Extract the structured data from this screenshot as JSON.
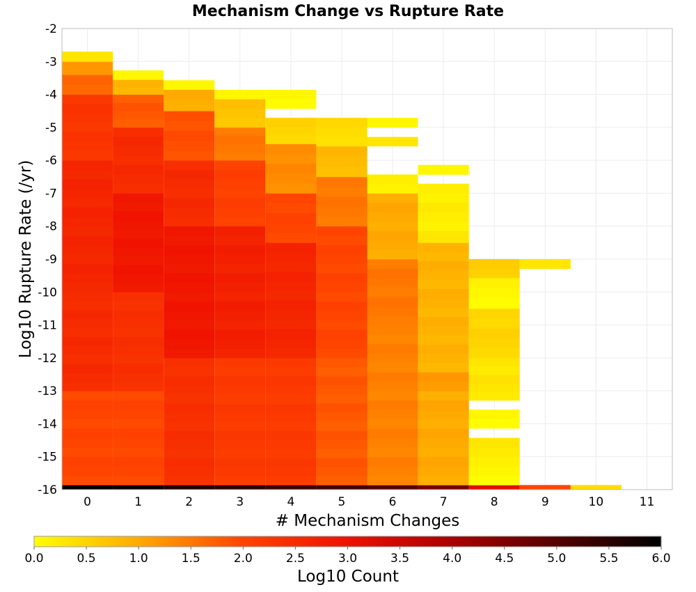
{
  "chart_data": {
    "type": "heatmap",
    "title": "Mechanism Change vs Rupture Rate",
    "xlabel": "# Mechanism Changes",
    "ylabel": "Log10 Rupture Rate (/yr)",
    "x_ticks": [
      "0",
      "1",
      "2",
      "3",
      "4",
      "5",
      "6",
      "7",
      "8",
      "9",
      "10",
      "11"
    ],
    "y_ticks": [
      "-2",
      "-3",
      "-4",
      "-5",
      "-6",
      "-7",
      "-8",
      "-9",
      "-10",
      "-11",
      "-12",
      "-13",
      "-14",
      "-15",
      "-16"
    ],
    "xlim": [
      -0.5,
      11.5
    ],
    "ylim": [
      -16,
      -2
    ],
    "bin_height": 0.2857,
    "colorscale": {
      "label": "Log10 Count",
      "range": [
        0,
        6
      ],
      "ticks": [
        "0.0",
        "0.5",
        "1.0",
        "1.5",
        "2.0",
        "2.5",
        "3.0",
        "3.5",
        "4.0",
        "4.5",
        "5.0",
        "5.5",
        "6.0"
      ],
      "stops": [
        "#ffff00",
        "#ffaa00",
        "#ff4400",
        "#ee1100",
        "#aa0000",
        "#550000",
        "#000000"
      ]
    },
    "columns": [
      {
        "x": 0,
        "bins": [
          {
            "from": -16.0,
            "to": -15.86,
            "value": 6.0
          },
          {
            "from": -15.86,
            "to": -13.0,
            "value": 2.0
          },
          {
            "from": -13.0,
            "to": -10.0,
            "value": 2.5
          },
          {
            "from": -10.0,
            "to": -6.0,
            "value": 2.6
          },
          {
            "from": -6.0,
            "to": -4.0,
            "value": 2.3
          },
          {
            "from": -4.0,
            "to": -3.4,
            "value": 1.7
          },
          {
            "from": -3.4,
            "to": -3.0,
            "value": 1.2
          },
          {
            "from": -3.0,
            "to": -2.7,
            "value": 0.3
          }
        ]
      },
      {
        "x": 1,
        "bins": [
          {
            "from": -16.0,
            "to": -15.86,
            "value": 5.9
          },
          {
            "from": -15.86,
            "to": -13.0,
            "value": 2.0
          },
          {
            "from": -13.0,
            "to": -10.0,
            "value": 2.4
          },
          {
            "from": -10.0,
            "to": -7.0,
            "value": 2.9
          },
          {
            "from": -7.0,
            "to": -5.0,
            "value": 2.5
          },
          {
            "from": -5.0,
            "to": -4.0,
            "value": 1.8
          },
          {
            "from": -4.0,
            "to": -3.55,
            "value": 0.9
          },
          {
            "from": -3.55,
            "to": -3.27,
            "value": 0.1
          }
        ]
      },
      {
        "x": 2,
        "bins": [
          {
            "from": -16.0,
            "to": -15.86,
            "value": 5.6
          },
          {
            "from": -15.86,
            "to": -12.0,
            "value": 2.4
          },
          {
            "from": -12.0,
            "to": -8.0,
            "value": 2.9
          },
          {
            "from": -8.0,
            "to": -6.0,
            "value": 2.5
          },
          {
            "from": -6.0,
            "to": -4.5,
            "value": 1.9
          },
          {
            "from": -4.5,
            "to": -3.85,
            "value": 1.0
          },
          {
            "from": -3.85,
            "to": -3.57,
            "value": 0.1
          }
        ]
      },
      {
        "x": 3,
        "bins": [
          {
            "from": -16.0,
            "to": -15.86,
            "value": 5.5
          },
          {
            "from": -15.86,
            "to": -12.0,
            "value": 2.2
          },
          {
            "from": -12.0,
            "to": -8.0,
            "value": 2.7
          },
          {
            "from": -8.0,
            "to": -6.0,
            "value": 2.1
          },
          {
            "from": -6.0,
            "to": -5.0,
            "value": 1.5
          },
          {
            "from": -5.0,
            "to": -4.14,
            "value": 0.7
          },
          {
            "from": -4.14,
            "to": -3.86,
            "value": 0.1
          }
        ]
      },
      {
        "x": 4,
        "bins": [
          {
            "from": -16.0,
            "to": -15.86,
            "value": 5.3
          },
          {
            "from": -15.86,
            "to": -12.0,
            "value": 2.2
          },
          {
            "from": -12.0,
            "to": -8.5,
            "value": 2.6
          },
          {
            "from": -8.5,
            "to": -7.0,
            "value": 2.0
          },
          {
            "from": -7.0,
            "to": -5.5,
            "value": 1.3
          },
          {
            "from": -5.5,
            "to": -4.71,
            "value": 0.5
          },
          {
            "from": -4.43,
            "to": -3.86,
            "value": 0.1
          }
        ]
      },
      {
        "x": 5,
        "bins": [
          {
            "from": -16.0,
            "to": -15.86,
            "value": 5.2
          },
          {
            "from": -15.86,
            "to": -12.0,
            "value": 1.8
          },
          {
            "from": -12.0,
            "to": -8.0,
            "value": 2.0
          },
          {
            "from": -8.0,
            "to": -6.5,
            "value": 1.5
          },
          {
            "from": -6.5,
            "to": -5.57,
            "value": 0.8
          },
          {
            "from": -5.57,
            "to": -4.71,
            "value": 0.4
          }
        ]
      },
      {
        "x": 6,
        "bins": [
          {
            "from": -16.0,
            "to": -15.86,
            "value": 5.0
          },
          {
            "from": -15.86,
            "to": -11.0,
            "value": 1.4
          },
          {
            "from": -11.0,
            "to": -9.0,
            "value": 1.5
          },
          {
            "from": -9.0,
            "to": -7.0,
            "value": 1.0
          },
          {
            "from": -7.0,
            "to": -6.43,
            "value": 0.2
          },
          {
            "from": -5.57,
            "to": -5.29,
            "value": 0.3
          },
          {
            "from": -5.0,
            "to": -4.71,
            "value": 0.1
          }
        ]
      },
      {
        "x": 7,
        "bins": [
          {
            "from": -16.0,
            "to": -15.86,
            "value": 4.6
          },
          {
            "from": -15.86,
            "to": -13.0,
            "value": 1.0
          },
          {
            "from": -13.0,
            "to": -12.43,
            "value": 1.2
          },
          {
            "from": -12.43,
            "to": -8.5,
            "value": 0.9
          },
          {
            "from": -8.5,
            "to": -8.14,
            "value": 0.3
          },
          {
            "from": -8.14,
            "to": -6.71,
            "value": 0.2
          },
          {
            "from": -6.43,
            "to": -6.14,
            "value": 0.1
          }
        ]
      },
      {
        "x": 8,
        "bins": [
          {
            "from": -16.0,
            "to": -15.86,
            "value": 3.2
          },
          {
            "from": -15.86,
            "to": -15.0,
            "value": 0.1
          },
          {
            "from": -15.0,
            "to": -14.43,
            "value": 0.3
          },
          {
            "from": -14.14,
            "to": -13.57,
            "value": 0.1
          },
          {
            "from": -13.29,
            "to": -12.0,
            "value": 0.3
          },
          {
            "from": -12.0,
            "to": -10.5,
            "value": 0.5
          },
          {
            "from": -10.5,
            "to": -9.57,
            "value": 0.1
          },
          {
            "from": -9.57,
            "to": -9.0,
            "value": 0.6
          }
        ]
      },
      {
        "x": 9,
        "bins": [
          {
            "from": -16.0,
            "to": -15.86,
            "value": 2.0
          },
          {
            "from": -9.29,
            "to": -9.0,
            "value": 0.3
          }
        ]
      },
      {
        "x": 10,
        "bins": [
          {
            "from": -16.0,
            "to": -15.86,
            "value": 0.4
          }
        ]
      },
      {
        "x": 11,
        "bins": []
      }
    ]
  }
}
